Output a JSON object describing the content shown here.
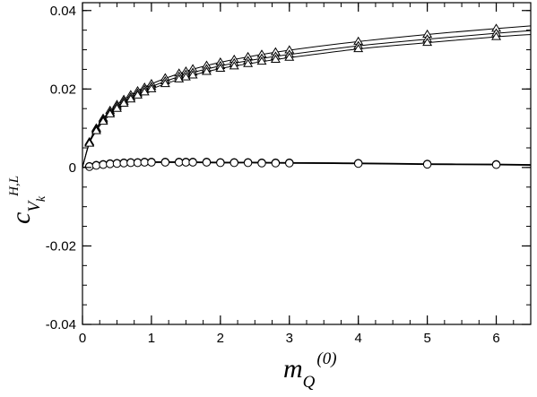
{
  "chart_data": {
    "type": "scatter",
    "xlim": [
      0,
      6.5
    ],
    "ylim": [
      -0.04,
      0.042
    ],
    "x_ticks": [
      0,
      1,
      2,
      3,
      4,
      5,
      6
    ],
    "x_tick_labels": [
      "0",
      "1",
      "2",
      "3",
      "4",
      "5",
      "6"
    ],
    "y_ticks": [
      -0.04,
      -0.02,
      0,
      0.02,
      0.04
    ],
    "y_tick_labels": [
      "-0.04",
      "-0.02",
      "0",
      "0.02",
      "0.04"
    ],
    "x_minor_step": 0.25,
    "y_minor_step": 0.005,
    "xlabel": {
      "main": "m",
      "sub": "Q",
      "sup": "(0)"
    },
    "ylabel": {
      "main": "c",
      "sub": "V",
      "subsub": "k",
      "sup": "H,L"
    },
    "grid": false,
    "legend": "none",
    "colors": {
      "line": "#000000",
      "marker_stroke": "#000000",
      "marker_fill": "#ffffff",
      "background": "#ffffff"
    },
    "series": [
      {
        "marker": "triangle",
        "x": [
          0.1,
          0.2,
          0.3,
          0.4,
          0.5,
          0.6,
          0.7,
          0.8,
          0.9,
          1.0,
          1.2,
          1.4,
          1.5,
          1.6,
          1.8,
          2.0,
          2.2,
          2.4,
          2.6,
          2.8,
          3.0,
          4.0,
          5.0,
          6.0
        ],
        "y": [
          0.0065,
          0.01,
          0.0125,
          0.0145,
          0.016,
          0.0173,
          0.0185,
          0.0195,
          0.0204,
          0.0213,
          0.0228,
          0.024,
          0.0245,
          0.0251,
          0.026,
          0.0268,
          0.0275,
          0.0282,
          0.0288,
          0.0294,
          0.0299,
          0.0321,
          0.0339,
          0.0354
        ],
        "curve": {
          "x": [
            0,
            0.1,
            0.2,
            0.3,
            0.5,
            0.7,
            1.0,
            1.5,
            2.0,
            2.5,
            3.0,
            4.0,
            5.0,
            6.0,
            6.5
          ],
          "y": [
            0,
            0.0065,
            0.01,
            0.0125,
            0.016,
            0.0185,
            0.0213,
            0.0245,
            0.0268,
            0.0285,
            0.0299,
            0.0321,
            0.0339,
            0.0354,
            0.0361
          ]
        }
      },
      {
        "marker": "triangle",
        "x": [
          0.1,
          0.2,
          0.3,
          0.4,
          0.5,
          0.6,
          0.7,
          0.8,
          0.9,
          1.0,
          1.2,
          1.4,
          1.5,
          1.6,
          1.8,
          2.0,
          2.2,
          2.4,
          2.6,
          2.8,
          3.0,
          4.0,
          5.0,
          6.0
        ],
        "y": [
          0.0063,
          0.0097,
          0.0121,
          0.014,
          0.0155,
          0.0168,
          0.0179,
          0.0189,
          0.0198,
          0.0206,
          0.022,
          0.0232,
          0.0237,
          0.0242,
          0.0251,
          0.0259,
          0.0266,
          0.0272,
          0.0278,
          0.0283,
          0.0288,
          0.031,
          0.0327,
          0.0342
        ],
        "curve": {
          "x": [
            0,
            0.1,
            0.2,
            0.3,
            0.5,
            0.7,
            1.0,
            1.5,
            2.0,
            2.5,
            3.0,
            4.0,
            5.0,
            6.0,
            6.5
          ],
          "y": [
            0,
            0.0063,
            0.0097,
            0.0121,
            0.0155,
            0.0179,
            0.0206,
            0.0237,
            0.0259,
            0.0275,
            0.0288,
            0.031,
            0.0327,
            0.0342,
            0.0349
          ]
        }
      },
      {
        "marker": "triangle",
        "x": [
          0.1,
          0.2,
          0.3,
          0.4,
          0.5,
          0.6,
          0.7,
          0.8,
          0.9,
          1.0,
          1.2,
          1.4,
          1.5,
          1.6,
          1.8,
          2.0,
          2.2,
          2.4,
          2.6,
          2.8,
          3.0,
          4.0,
          5.0,
          6.0
        ],
        "y": [
          0.0061,
          0.0093,
          0.0117,
          0.0136,
          0.015,
          0.0163,
          0.0174,
          0.0184,
          0.0192,
          0.02,
          0.0213,
          0.0225,
          0.023,
          0.0235,
          0.0244,
          0.0252,
          0.0258,
          0.0264,
          0.027,
          0.0275,
          0.028,
          0.0302,
          0.0318,
          0.0333
        ],
        "curve": {
          "x": [
            0,
            0.1,
            0.2,
            0.3,
            0.5,
            0.7,
            1.0,
            1.5,
            2.0,
            2.5,
            3.0,
            4.0,
            5.0,
            6.0,
            6.5
          ],
          "y": [
            0,
            0.0061,
            0.0093,
            0.0117,
            0.015,
            0.0174,
            0.02,
            0.023,
            0.0252,
            0.0267,
            0.028,
            0.0302,
            0.0318,
            0.0333,
            0.0339
          ]
        }
      },
      {
        "marker": "circle",
        "x": [
          0.1,
          0.2,
          0.3,
          0.4,
          0.5,
          0.6,
          0.7,
          0.8,
          0.9,
          1.0,
          1.2,
          1.4,
          1.5,
          1.6,
          1.8,
          2.0,
          2.2,
          2.4,
          2.6,
          2.8,
          3.0,
          4.0,
          5.0,
          6.0
        ],
        "y": [
          0.0003,
          0.0006,
          0.0008,
          0.001,
          0.0011,
          0.0012,
          0.0013,
          0.0013,
          0.0014,
          0.0014,
          0.0014,
          0.0014,
          0.0014,
          0.0014,
          0.0014,
          0.0013,
          0.0013,
          0.0013,
          0.0012,
          0.0012,
          0.0012,
          0.0011,
          0.0009,
          0.0008
        ],
        "curve": {
          "x": [
            0,
            0.1,
            0.2,
            0.4,
            0.7,
            1.0,
            1.5,
            2.0,
            2.5,
            3.0,
            4.0,
            5.0,
            6.0,
            6.5
          ],
          "y": [
            0,
            0.0003,
            0.0006,
            0.001,
            0.0013,
            0.0014,
            0.0014,
            0.0013,
            0.0013,
            0.0012,
            0.0011,
            0.0009,
            0.0008,
            0.0007
          ]
        }
      },
      {
        "marker": "circle",
        "x": [
          0.1,
          0.2,
          0.3,
          0.4,
          0.5,
          0.6,
          0.7,
          0.8,
          0.9,
          1.0,
          1.2,
          1.4,
          1.5,
          1.6,
          1.8,
          2.0,
          2.2,
          2.4,
          2.6,
          2.8,
          3.0,
          4.0,
          5.0,
          6.0
        ],
        "y": [
          0.0002,
          0.0005,
          0.0007,
          0.0009,
          0.001,
          0.0011,
          0.0012,
          0.0012,
          0.0013,
          0.0013,
          0.0013,
          0.0013,
          0.0013,
          0.0013,
          0.0013,
          0.0012,
          0.0012,
          0.0012,
          0.0011,
          0.0011,
          0.0011,
          0.001,
          0.0008,
          0.0007
        ],
        "curve": {
          "x": [
            0,
            0.1,
            0.2,
            0.4,
            0.7,
            1.0,
            1.5,
            2.0,
            2.5,
            3.0,
            4.0,
            5.0,
            6.0,
            6.5
          ],
          "y": [
            0,
            0.0002,
            0.0005,
            0.0009,
            0.0012,
            0.0013,
            0.0013,
            0.0012,
            0.0012,
            0.0011,
            0.001,
            0.0008,
            0.0007,
            0.0006
          ]
        }
      }
    ]
  }
}
